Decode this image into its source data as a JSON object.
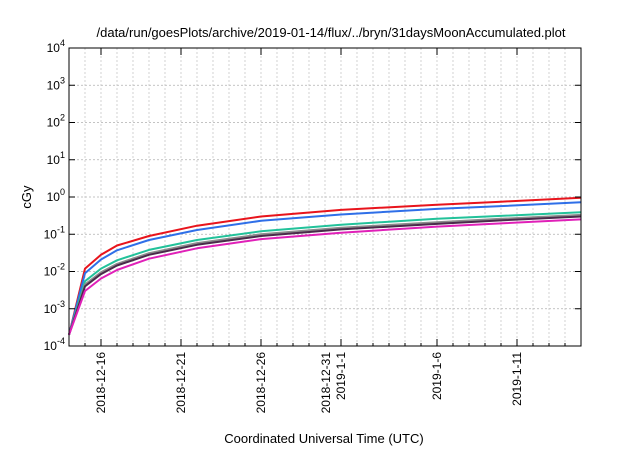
{
  "chart_data": {
    "type": "line",
    "title": "/data/run/goesPlots/archive/2019-01-14/flux/../bryn/31daysMoonAccumulated.plot",
    "xlabel": "Coordinated Universal Time (UTC)",
    "ylabel": "cGy",
    "yscale": "log",
    "ylim": [
      0.0001,
      10000
    ],
    "xlim": [
      "2018-12-14",
      "2019-01-15"
    ],
    "grid": true,
    "y_ticks": [
      {
        "base": "10",
        "exp": "-4",
        "value": 0.0001
      },
      {
        "base": "10",
        "exp": "-3",
        "value": 0.001
      },
      {
        "base": "10",
        "exp": "-2",
        "value": 0.01
      },
      {
        "base": "10",
        "exp": "-1",
        "value": 0.1
      },
      {
        "base": "10",
        "exp": "0",
        "value": 1
      },
      {
        "base": "10",
        "exp": "1",
        "value": 10
      },
      {
        "base": "10",
        "exp": "2",
        "value": 100
      },
      {
        "base": "10",
        "exp": "3",
        "value": 1000
      },
      {
        "base": "10",
        "exp": "4",
        "value": 10000
      }
    ],
    "x_ticks": [
      {
        "date": "2018-12-16",
        "lines": [
          "2018-12-16"
        ]
      },
      {
        "date": "2018-12-21",
        "lines": [
          "2018-12-21"
        ]
      },
      {
        "date": "2018-12-26",
        "lines": [
          "2018-12-26"
        ]
      },
      {
        "date": "2018-12-31",
        "lines": [
          "2018-12-31",
          "2019-1-1"
        ]
      },
      {
        "date": "2019-01-06",
        "lines": [
          "2019-1-6"
        ]
      },
      {
        "date": "2019-01-11",
        "lines": [
          "2019-1-11"
        ]
      }
    ],
    "series": [
      {
        "color": "#e8141c",
        "x": [
          "2018-12-14",
          "2018-12-15",
          "2018-12-16",
          "2018-12-17",
          "2018-12-19",
          "2018-12-22",
          "2018-12-26",
          "2018-12-31",
          "2019-01-06",
          "2019-01-10",
          "2019-01-15"
        ],
        "y": [
          0.0002,
          0.012,
          0.028,
          0.05,
          0.09,
          0.17,
          0.3,
          0.45,
          0.62,
          0.75,
          0.95
        ]
      },
      {
        "color": "#2f6fe8",
        "x": [
          "2018-12-14",
          "2018-12-15",
          "2018-12-16",
          "2018-12-17",
          "2018-12-19",
          "2018-12-22",
          "2018-12-26",
          "2018-12-31",
          "2019-01-06",
          "2019-01-10",
          "2019-01-15"
        ],
        "y": [
          0.0002,
          0.009,
          0.021,
          0.037,
          0.07,
          0.13,
          0.23,
          0.34,
          0.48,
          0.57,
          0.72
        ]
      },
      {
        "color": "#22c29a",
        "x": [
          "2018-12-14",
          "2018-12-15",
          "2018-12-16",
          "2018-12-17",
          "2018-12-19",
          "2018-12-22",
          "2018-12-26",
          "2018-12-31",
          "2019-01-06",
          "2019-01-10",
          "2019-01-15"
        ],
        "y": [
          0.0002,
          0.0055,
          0.012,
          0.02,
          0.038,
          0.07,
          0.12,
          0.18,
          0.26,
          0.31,
          0.39
        ]
      },
      {
        "color": "#8c8c8c",
        "x": [
          "2018-12-14",
          "2018-12-15",
          "2018-12-16",
          "2018-12-17",
          "2018-12-19",
          "2018-12-22",
          "2018-12-26",
          "2018-12-31",
          "2019-01-06",
          "2019-01-10",
          "2019-01-15"
        ],
        "y": [
          0.0002,
          0.0045,
          0.0095,
          0.016,
          0.031,
          0.058,
          0.1,
          0.15,
          0.21,
          0.26,
          0.33
        ]
      },
      {
        "color": "#4a2a4a",
        "x": [
          "2018-12-14",
          "2018-12-15",
          "2018-12-16",
          "2018-12-17",
          "2018-12-19",
          "2018-12-22",
          "2018-12-26",
          "2018-12-31",
          "2019-01-06",
          "2019-01-10",
          "2019-01-15"
        ],
        "y": [
          0.0002,
          0.004,
          0.0085,
          0.0145,
          0.028,
          0.052,
          0.09,
          0.135,
          0.19,
          0.235,
          0.3
        ]
      },
      {
        "color": "#e020b8",
        "x": [
          "2018-12-14",
          "2018-12-15",
          "2018-12-16",
          "2018-12-17",
          "2018-12-19",
          "2018-12-22",
          "2018-12-26",
          "2018-12-31",
          "2019-01-06",
          "2019-01-10",
          "2019-01-15"
        ],
        "y": [
          0.0002,
          0.003,
          0.0065,
          0.011,
          0.022,
          0.042,
          0.074,
          0.11,
          0.16,
          0.195,
          0.25
        ]
      }
    ]
  }
}
